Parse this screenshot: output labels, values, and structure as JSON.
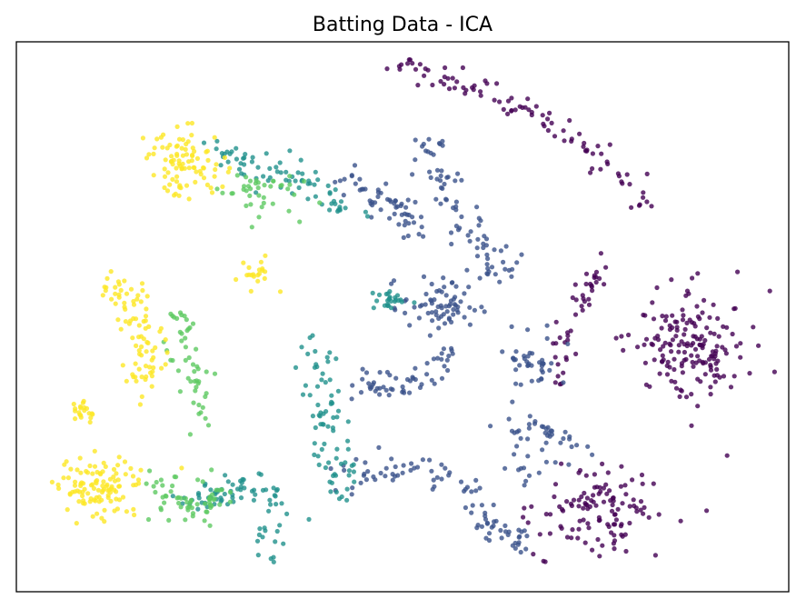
{
  "chart_data": {
    "type": "scatter",
    "title": "Batting Data - ICA",
    "xlabel": "",
    "ylabel": "",
    "xlim": [
      0,
      100
    ],
    "ylim": [
      0,
      100
    ],
    "x_ticks": [],
    "y_ticks": [],
    "grid": false,
    "legend": "none",
    "marker_opacity": 0.8,
    "colormap": {
      "name": "viridis",
      "stops": [
        "#440154",
        "#3b528b",
        "#21918c",
        "#5ec962",
        "#fde725"
      ]
    },
    "clusters": [
      {
        "name": "arc-top",
        "color_level": 0,
        "count": 95,
        "path": [
          [
            49,
            95.5
          ],
          [
            55,
            94
          ],
          [
            61,
            91
          ],
          [
            68,
            86
          ],
          [
            74,
            80
          ],
          [
            79,
            75
          ],
          [
            83,
            70
          ]
        ],
        "spread": 1.4
      },
      {
        "name": "right-blob",
        "color_level": 0,
        "count": 170,
        "center": [
          87,
          44
        ],
        "rx": 7.5,
        "ry": 10.5
      },
      {
        "name": "bottom-right-blob",
        "color_level": 0,
        "count": 120,
        "center": [
          76,
          15
        ],
        "rx": 8,
        "ry": 8
      },
      {
        "name": "right-strand",
        "color_level": 0,
        "count": 45,
        "path": [
          [
            76,
            60
          ],
          [
            74,
            55
          ],
          [
            72,
            50
          ],
          [
            71,
            44
          ],
          [
            70,
            38
          ]
        ],
        "spread": 1.3
      },
      {
        "name": "lower-left-arc",
        "color_level": 0.25,
        "count": 90,
        "path": [
          [
            42,
            20
          ],
          [
            50,
            23
          ],
          [
            57,
            20
          ],
          [
            62,
            12
          ],
          [
            66,
            8
          ]
        ],
        "spread": 1.8
      },
      {
        "name": "mid-top",
        "color_level": 0.25,
        "count": 80,
        "path": [
          [
            53,
            83
          ],
          [
            55,
            75
          ],
          [
            57,
            68
          ],
          [
            60,
            62
          ],
          [
            63,
            56
          ]
        ],
        "spread": 2.2
      },
      {
        "name": "center",
        "color_level": 0.25,
        "count": 70,
        "center": [
          55,
          52
        ],
        "rx": 5,
        "ry": 5
      },
      {
        "name": "center-low",
        "color_level": 0.25,
        "count": 55,
        "path": [
          [
            45,
            38
          ],
          [
            50,
            37
          ],
          [
            54,
            40
          ],
          [
            57,
            43
          ]
        ],
        "spread": 1.8
      },
      {
        "name": "right-mid",
        "color_level": 0.25,
        "count": 40,
        "center": [
          67,
          42
        ],
        "rx": 3.5,
        "ry": 4.5
      },
      {
        "name": "right-low",
        "color_level": 0.25,
        "count": 50,
        "center": [
          68,
          27
        ],
        "rx": 5,
        "ry": 6
      },
      {
        "name": "mid-band",
        "color_level": 0.25,
        "count": 55,
        "path": [
          [
            41,
            76
          ],
          [
            46,
            72
          ],
          [
            50,
            69
          ],
          [
            52,
            65
          ]
        ],
        "spread": 1.8
      },
      {
        "name": "upper-left-band",
        "color_level": 0.5,
        "count": 75,
        "path": [
          [
            26,
            80
          ],
          [
            30,
            78
          ],
          [
            35,
            76
          ],
          [
            40,
            72
          ],
          [
            44,
            69
          ]
        ],
        "spread": 2.2
      },
      {
        "name": "left-strand",
        "color_level": 0.5,
        "count": 75,
        "path": [
          [
            38,
            48
          ],
          [
            39,
            40
          ],
          [
            40,
            32
          ],
          [
            41,
            24
          ],
          [
            43,
            18
          ]
        ],
        "spread": 2.0
      },
      {
        "name": "lower-left",
        "color_level": 0.5,
        "count": 80,
        "path": [
          [
            22,
            16
          ],
          [
            27,
            18
          ],
          [
            31,
            20
          ],
          [
            34,
            14
          ],
          [
            32,
            8
          ]
        ],
        "spread": 2.0
      },
      {
        "name": "center-teal",
        "color_level": 0.5,
        "count": 25,
        "center": [
          48,
          53
        ],
        "rx": 2.5,
        "ry": 2
      },
      {
        "name": "upper-left-green",
        "color_level": 0.75,
        "count": 40,
        "center": [
          31,
          73
        ],
        "rx": 5,
        "ry": 4.5
      },
      {
        "name": "left-green",
        "color_level": 0.75,
        "count": 50,
        "path": [
          [
            21,
            52
          ],
          [
            22,
            44
          ],
          [
            24,
            36
          ],
          [
            24,
            30
          ]
        ],
        "spread": 2.0
      },
      {
        "name": "bottom-left-green",
        "color_level": 0.75,
        "count": 60,
        "path": [
          [
            18,
            20
          ],
          [
            21,
            16
          ],
          [
            24,
            14
          ],
          [
            27,
            20
          ]
        ],
        "spread": 2.0
      },
      {
        "name": "upper-left-yellow",
        "color_level": 1,
        "count": 90,
        "center": [
          22,
          78
        ],
        "rx": 5,
        "ry": 6
      },
      {
        "name": "left-yellow",
        "color_level": 1,
        "count": 85,
        "path": [
          [
            12,
            56
          ],
          [
            15,
            53
          ],
          [
            17,
            44
          ],
          [
            17,
            36
          ]
        ],
        "spread": 2.2
      },
      {
        "name": "mid-left-yellow",
        "color_level": 1,
        "count": 20,
        "center": [
          31,
          58
        ],
        "rx": 2,
        "ry": 3
      },
      {
        "name": "far-left-yellow",
        "color_level": 1,
        "count": 20,
        "center": [
          8.5,
          33
        ],
        "rx": 1.8,
        "ry": 2
      },
      {
        "name": "bottom-left-yellow",
        "color_level": 1,
        "count": 110,
        "center": [
          11,
          19
        ],
        "rx": 5.5,
        "ry": 5.5
      }
    ]
  }
}
